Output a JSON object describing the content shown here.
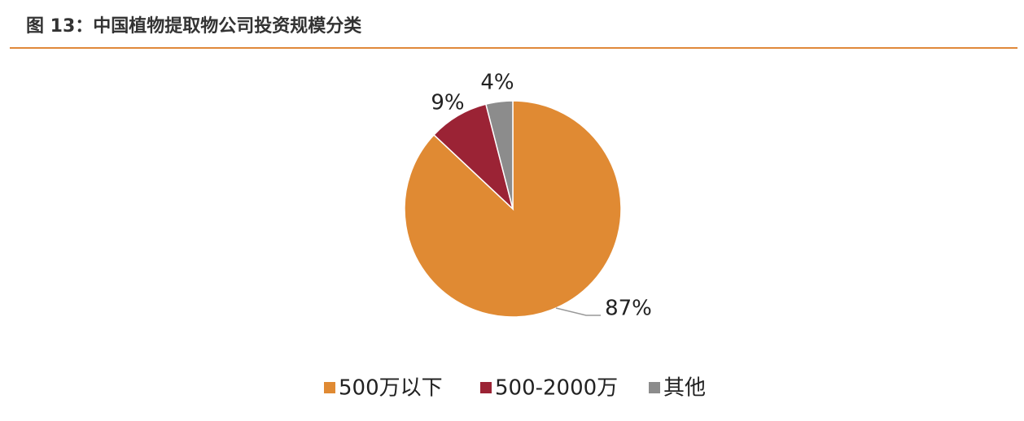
{
  "chart_data": {
    "type": "pie",
    "title": "图 13：中国植物提取物公司投资规模分类",
    "categories": [
      "500万以下",
      "500-2000万",
      "其他"
    ],
    "values": [
      87,
      9,
      4
    ],
    "value_labels": [
      "87%",
      "9%",
      "4%"
    ],
    "colors": [
      "#e08a33",
      "#9b2335",
      "#8c8c8c"
    ]
  }
}
